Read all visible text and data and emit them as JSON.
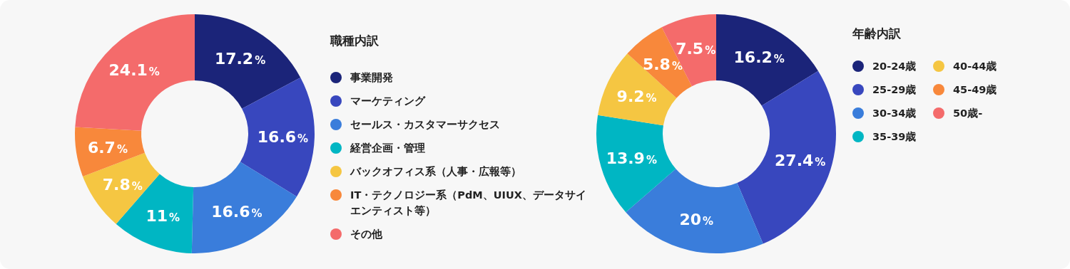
{
  "chart_data": [
    {
      "type": "donut",
      "legend_title": "職種内訳",
      "legend": "right",
      "categories": [
        "事業開発",
        "マーケティング",
        "セールス・カスタマーサクセス",
        "経営企画・管理",
        "バックオフィス系（人事・広報等）",
        "IT・テクノロジー系（PdM、UIUX、データサイエンティスト等）",
        "その他"
      ],
      "values": [
        17.2,
        16.6,
        16.6,
        11,
        7.8,
        6.7,
        24.1
      ],
      "value_labels": [
        "17.2%",
        "16.6%",
        "16.6%",
        "11%",
        "7.8%",
        "6.7%",
        "24.1%"
      ],
      "colors": [
        "#1b2479",
        "#3847be",
        "#3a7ddb",
        "#00b6c3",
        "#f5c642",
        "#f8883b",
        "#f46b6b"
      ]
    },
    {
      "type": "donut",
      "legend_title": "年齢内訳",
      "legend": "right",
      "categories": [
        "20-24歳",
        "25-29歳",
        "30-34歳",
        "35-39歳",
        "40-44歳",
        "45-49歳",
        "50歳-"
      ],
      "values": [
        16.2,
        27.4,
        20,
        13.9,
        9.2,
        5.8,
        7.5
      ],
      "value_labels": [
        "16.2%",
        "27.4%",
        "20%",
        "13.9%",
        "9.2%",
        "5.8%",
        "7.5%"
      ],
      "colors": [
        "#1b2479",
        "#3847be",
        "#3a7ddb",
        "#00b6c3",
        "#f5c642",
        "#f8883b",
        "#f46b6b"
      ]
    }
  ]
}
